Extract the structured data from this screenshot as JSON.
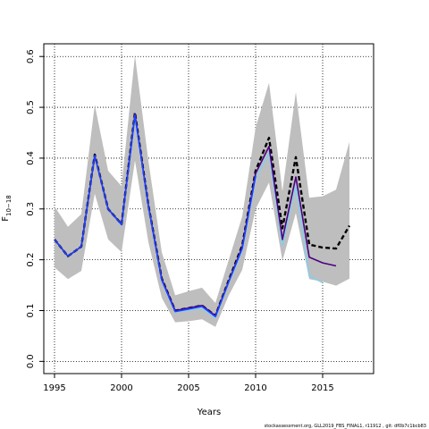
{
  "chart_data": {
    "type": "line",
    "xlabel": "Years",
    "ylabel": "F",
    "ylabel_subscript": "10−18",
    "xlim": [
      1994.2,
      2018.8
    ],
    "ylim": [
      -0.024,
      0.625
    ],
    "x_ticks": [
      1995,
      2000,
      2005,
      2010,
      2015
    ],
    "x_tick_labels": [
      "1995",
      "2000",
      "2005",
      "2010",
      "2015"
    ],
    "y_ticks": [
      0.0,
      0.1,
      0.2,
      0.3,
      0.4,
      0.5,
      0.6
    ],
    "y_tick_labels": [
      "0.0",
      "0.1",
      "0.2",
      "0.3",
      "0.4",
      "0.5",
      "0.6"
    ],
    "grid": true,
    "band": {
      "x": [
        1995,
        1996,
        1997,
        1998,
        1999,
        2000,
        2001,
        2002,
        2003,
        2004,
        2005,
        2006,
        2007,
        2008,
        2009,
        2010,
        2011,
        2012,
        2013,
        2014,
        2015,
        2016,
        2017
      ],
      "upper": [
        0.305,
        0.265,
        0.29,
        0.505,
        0.375,
        0.345,
        0.602,
        0.395,
        0.215,
        0.13,
        0.138,
        0.145,
        0.115,
        0.2,
        0.285,
        0.46,
        0.548,
        0.335,
        0.53,
        0.322,
        0.325,
        0.338,
        0.432
      ],
      "lower": [
        0.185,
        0.162,
        0.178,
        0.33,
        0.24,
        0.215,
        0.395,
        0.235,
        0.125,
        0.077,
        0.079,
        0.083,
        0.068,
        0.13,
        0.18,
        0.3,
        0.352,
        0.198,
        0.292,
        0.162,
        0.157,
        0.149,
        0.163
      ],
      "color": "#bebebe"
    },
    "series": [
      {
        "color": "#87ceeb",
        "style": "solid",
        "x": [
          1995,
          1996,
          1997,
          1998,
          1999,
          2000,
          2001,
          2002,
          2003,
          2004,
          2005,
          2006,
          2007,
          2008,
          2009,
          2010,
          2011,
          2012,
          2013,
          2014,
          2015
        ],
        "values": [
          0.24,
          0.207,
          0.226,
          0.405,
          0.3,
          0.268,
          0.478,
          0.305,
          0.158,
          0.097,
          0.1,
          0.105,
          0.086,
          0.155,
          0.218,
          0.36,
          0.41,
          0.228,
          0.345,
          0.168,
          0.155
        ]
      },
      {
        "color": "#000000",
        "style": "dashed",
        "x": [
          1995,
          1996,
          1997,
          1998,
          1999,
          2000,
          2001,
          2002,
          2003,
          2004,
          2005,
          2006,
          2007,
          2008,
          2009,
          2010,
          2011,
          2012,
          2013,
          2014,
          2015,
          2016,
          2017
        ],
        "values": [
          0.24,
          0.207,
          0.226,
          0.407,
          0.3,
          0.27,
          0.49,
          0.308,
          0.163,
          0.1,
          0.105,
          0.11,
          0.09,
          0.16,
          0.228,
          0.375,
          0.44,
          0.262,
          0.402,
          0.23,
          0.224,
          0.222,
          0.267
        ]
      },
      {
        "color": "#4b0082",
        "style": "solid",
        "x": [
          1995,
          1996,
          1997,
          1998,
          1999,
          2000,
          2001,
          2002,
          2003,
          2004,
          2005,
          2006,
          2007,
          2008,
          2009,
          2010,
          2011,
          2012,
          2013,
          2014,
          2015,
          2016
        ],
        "values": [
          0.24,
          0.207,
          0.226,
          0.405,
          0.3,
          0.27,
          0.487,
          0.307,
          0.162,
          0.1,
          0.105,
          0.11,
          0.09,
          0.158,
          0.225,
          0.37,
          0.423,
          0.24,
          0.363,
          0.205,
          0.194,
          0.188
        ]
      },
      {
        "color": "#1e40ff",
        "style": "solid",
        "x": [
          1995,
          1996,
          1997,
          1998,
          1999,
          2000,
          2001,
          2002,
          2003,
          2004,
          2005,
          2006,
          2007,
          2008,
          2009,
          2010
        ],
        "values": [
          0.24,
          0.207,
          0.226,
          0.405,
          0.3,
          0.269,
          0.485,
          0.306,
          0.16,
          0.098,
          0.103,
          0.108,
          0.088,
          0.157,
          0.222,
          0.365
        ]
      }
    ],
    "caption": "stockassessment.org, GLL2019_FBS_FINAL1, r11912 , git: df0b7c1bcb83"
  }
}
